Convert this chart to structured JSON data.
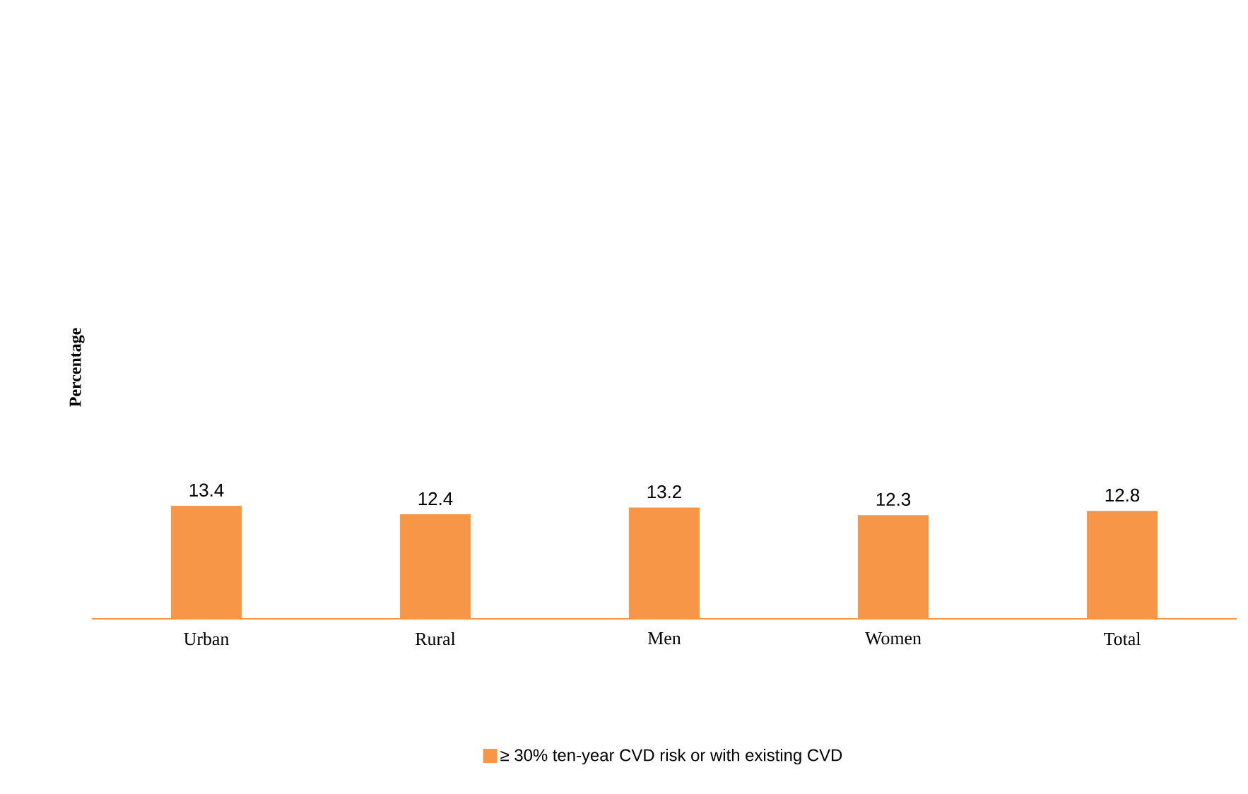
{
  "chart_data": {
    "type": "bar",
    "annotations": [
      "Percentage"
    ],
    "categories": [
      "Urban",
      "Rural",
      "Men",
      "Women",
      "Total"
    ],
    "series": [
      {
        "name": "≥ 30% ten-year CVD risk or with existing CVD",
        "color": "#f79646",
        "values": [
          13.4,
          12.4,
          13.2,
          12.3,
          12.8
        ]
      }
    ],
    "tick_labels": "x",
    "data_labels": true,
    "legend": "bottom"
  }
}
